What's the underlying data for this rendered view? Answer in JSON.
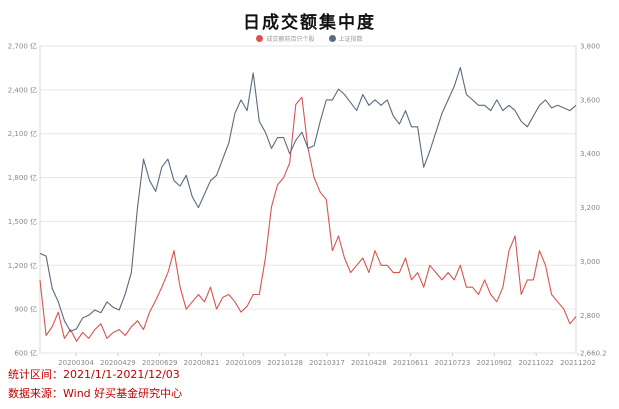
{
  "chart_data": {
    "type": "line",
    "title": "日成交额集中度",
    "colors": {
      "turnover": "#d9534f",
      "index": "#5b6b7b"
    },
    "left_axis": {
      "ylim": [
        600,
        2700
      ],
      "ticks": [
        600,
        900,
        1200,
        1500,
        1800,
        2100,
        2400,
        2700
      ],
      "tick_labels": [
        "600 亿",
        "900 亿",
        "1,200 亿",
        "1,500 亿",
        "1,800 亿",
        "2,100 亿",
        "2,400 亿",
        "2,700 亿"
      ]
    },
    "right_axis": {
      "ylim": [
        2660.2,
        3800
      ],
      "ticks": [
        2660.2,
        2800,
        3000,
        3200,
        3400,
        3600,
        3800
      ],
      "tick_labels": [
        "2,660.2",
        "2,800",
        "3,000",
        "3,200",
        "3,400",
        "3,600",
        "3,800"
      ]
    },
    "x_tick_labels": [
      "20200304",
      "20200429",
      "20200629",
      "20200821",
      "20201009",
      "20210128",
      "20210317",
      "20210428",
      "20210611",
      "20210723",
      "20210902",
      "20211022",
      "20211202"
    ],
    "grid": true,
    "legend_position": "top-center",
    "series": [
      {
        "key": "turnover",
        "axis": "left",
        "name": "成交额前百只个股",
        "values": [
          1100,
          720,
          780,
          880,
          700,
          760,
          680,
          740,
          700,
          760,
          800,
          700,
          740,
          760,
          720,
          780,
          820,
          760,
          880,
          960,
          1050,
          1150,
          1300,
          1050,
          900,
          950,
          1000,
          950,
          1050,
          900,
          980,
          1000,
          950,
          880,
          920,
          1000,
          1000,
          1250,
          1600,
          1750,
          1800,
          1900,
          2300,
          2350,
          2000,
          1800,
          1700,
          1650,
          1300,
          1400,
          1250,
          1150,
          1200,
          1250,
          1150,
          1300,
          1200,
          1200,
          1150,
          1150,
          1250,
          1100,
          1150,
          1050,
          1200,
          1150,
          1100,
          1150,
          1100,
          1200,
          1050,
          1050,
          1000,
          1100,
          1000,
          950,
          1050,
          1300,
          1400,
          1000,
          1100,
          1100,
          1300,
          1200,
          1000,
          950,
          900,
          800,
          850
        ]
      },
      {
        "key": "index",
        "axis": "right",
        "name": "上证指数",
        "values": [
          3030,
          3020,
          2900,
          2850,
          2780,
          2740,
          2750,
          2790,
          2800,
          2820,
          2810,
          2850,
          2830,
          2820,
          2880,
          2960,
          3200,
          3380,
          3300,
          3260,
          3350,
          3380,
          3300,
          3280,
          3320,
          3240,
          3200,
          3250,
          3300,
          3320,
          3380,
          3440,
          3550,
          3600,
          3560,
          3700,
          3520,
          3480,
          3420,
          3460,
          3460,
          3400,
          3450,
          3480,
          3420,
          3430,
          3520,
          3600,
          3600,
          3640,
          3620,
          3590,
          3560,
          3620,
          3580,
          3600,
          3580,
          3600,
          3540,
          3510,
          3560,
          3500,
          3500,
          3350,
          3410,
          3480,
          3550,
          3600,
          3650,
          3720,
          3620,
          3600,
          3580,
          3580,
          3560,
          3600,
          3560,
          3580,
          3560,
          3520,
          3500,
          3540,
          3580,
          3600,
          3570,
          3580,
          3570,
          3560,
          3580
        ]
      }
    ]
  },
  "footer": {
    "period": "统计区间：2021/1/1-2021/12/03",
    "source": "数据来源：Wind  好买基金研究中心"
  }
}
